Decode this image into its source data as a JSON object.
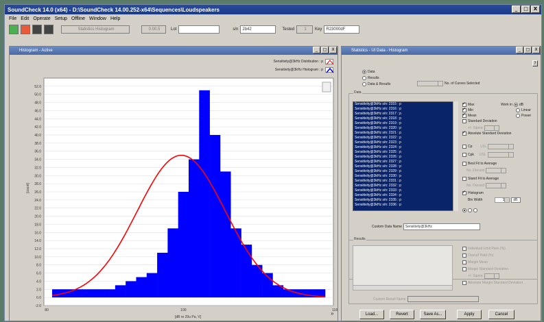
{
  "app": {
    "title": "SoundCheck 14.0 (x64) - D:\\SoundCheck 14.00.252-x64\\Sequences\\Loudspeakers",
    "window_controls": [
      "_",
      "□",
      "X"
    ]
  },
  "menu": [
    "File",
    "Edit",
    "Operate",
    "Setup",
    "Offline",
    "Window",
    "Help"
  ],
  "toolbar": {
    "step_field": "Statistics Histogram",
    "step_number": "0.00.5",
    "lot_label": "Lot",
    "lot_value": "",
    "sn_label": "s/n",
    "sn_value": "2b42",
    "tested_label": "Tested",
    "tested_value": "1",
    "key_label": "Key",
    "key_value": "R23000dF"
  },
  "histogram_window": {
    "title": "Histogram - Active",
    "legend": [
      {
        "name": "Sensitivity@3kHz Distribution : p",
        "color": "#ff0000"
      },
      {
        "name": "Sensitivity@3kHz Histogram : p",
        "color": "#0000ff"
      }
    ],
    "xlabel": "[dB re 20u Pa, V]",
    "ylabel": "[count]"
  },
  "chart_data": {
    "type": "bar",
    "ylim": [
      -2,
      54
    ],
    "yticks": [
      "52.0",
      "50.0",
      "48.0",
      "46.0",
      "44.0",
      "42.0",
      "40.0",
      "38.0",
      "36.0",
      "34.0",
      "32.0",
      "30.0",
      "28.0",
      "26.0",
      "24.0",
      "22.0",
      "20.0",
      "18.0",
      "16.0",
      "14.0",
      "12.0",
      "10.0",
      "8.0",
      "6.0",
      "4.0",
      "2.0",
      "0.0",
      "-2.0"
    ],
    "xtick_labels": [
      "80",
      "100",
      "118"
    ],
    "bars": [
      2,
      2,
      2,
      2,
      2,
      2,
      3,
      4,
      5,
      6,
      11,
      17,
      26,
      34,
      51,
      40,
      31,
      17,
      13,
      8,
      6,
      3,
      2,
      2,
      2,
      2
    ],
    "curve_peak": 35,
    "curve_sigma_bins": 4.2,
    "curve_center_bin": 12.3,
    "series": [
      {
        "name": "Sensitivity@3kHz Histogram : p",
        "color": "#0000ff"
      },
      {
        "name": "Sensitivity@3kHz Distribution : p",
        "color": "#ff0000"
      }
    ]
  },
  "stats_window": {
    "title": "Statistics - UI Data - Histogram",
    "help": "?",
    "curve_mode": {
      "options": [
        "Data",
        "Results",
        "Data & Results"
      ],
      "selected": "Data"
    },
    "curves_selected_label": "No. of Curves Selected",
    "data_group": "Data",
    "data_items": [
      "Sensitivity@3kHz s/n: 2315 : p",
      "Sensitivity@3kHz s/n: 2316 : p",
      "Sensitivity@3kHz s/n: 2317 : p",
      "Sensitivity@3kHz s/n: 2318 : p",
      "Sensitivity@3kHz s/n: 2319 : p",
      "Sensitivity@3kHz s/n: 2320 : p",
      "Sensitivity@3kHz s/n: 2321 : p",
      "Sensitivity@3kHz s/n: 2322 : p",
      "Sensitivity@3kHz s/n: 2323 : p",
      "Sensitivity@3kHz s/n: 2324 : p",
      "Sensitivity@3kHz s/n: 2325 : p",
      "Sensitivity@3kHz s/n: 2326 : p",
      "Sensitivity@3kHz s/n: 2327 : p",
      "Sensitivity@3kHz s/n: 2328 : p",
      "Sensitivity@3kHz s/n: 2329 : p",
      "Sensitivity@3kHz s/n: 2330 : p",
      "Sensitivity@3kHz s/n: 2331 : p",
      "Sensitivity@3kHz s/n: 2332 : p",
      "Sensitivity@3kHz s/n: 2333 : p",
      "Sensitivity@3kHz s/n: 2334 : p",
      "Sensitivity@3kHz s/n: 2335 : p",
      "Sensitivity@3kHz s/n: 2336 : p"
    ],
    "checks": {
      "max": "Max",
      "min": "Min",
      "mean": "Mean",
      "std_dev": "Standard Deviation",
      "sigma": "+/- Sigma",
      "abs_std_dev": "Absolute Standard Deviation",
      "cp": "Cp",
      "cpk": "Cpk",
      "lsl": "LSL",
      "usl": "USL",
      "best_fit": "Best Fit to Average",
      "no_discard": "No. Discard",
      "stand_fit": "Stand Fit to Average",
      "histogram": "Histogram",
      "bin_width_label": "Bin Width",
      "bin_width": "1",
      "bin_unit": "dB"
    },
    "work_in": {
      "label": "Work in",
      "options": [
        "dB",
        "Linear",
        "Power"
      ],
      "selected": "dB"
    },
    "custom_data_name_label": "Custom Data Name",
    "custom_data_name": "Sensitivity@3kHz",
    "results_group": "Results",
    "result_checks": [
      "Individual Limit Pass (%)",
      "Overall Yield (%)",
      "Margin Mean",
      "Margin Standard Deviation",
      "+/- Sigma",
      "Absolute Margin Standard Deviation"
    ],
    "custom_result_name_label": "Custom Result Name",
    "buttons": [
      "Load...",
      "Revert",
      "Save As...",
      "Apply",
      "Cancel"
    ]
  }
}
